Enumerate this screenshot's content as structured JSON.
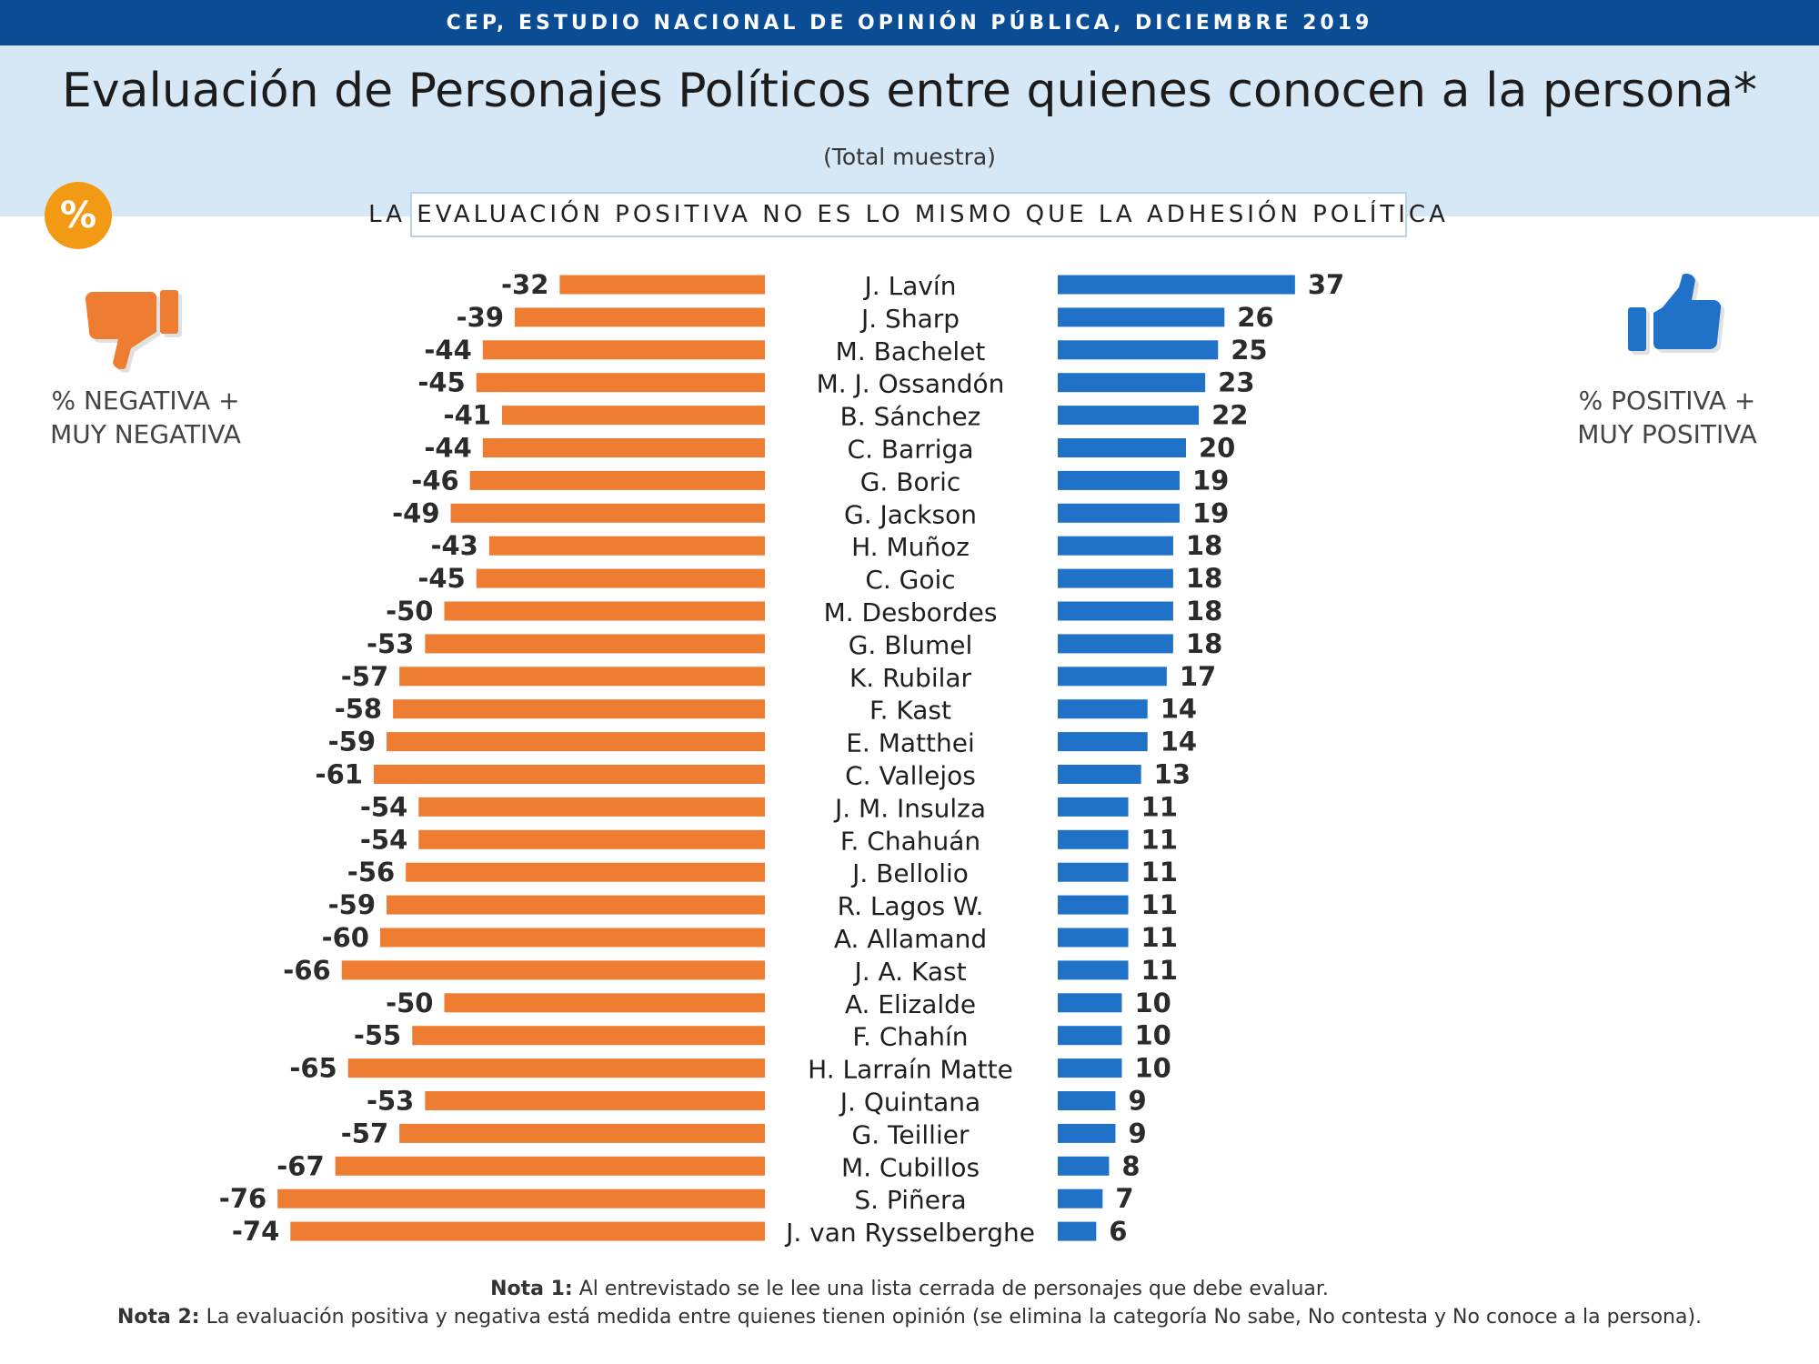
{
  "header": {
    "source": "CEP, ESTUDIO NACIONAL DE OPINIÓN PÚBLICA, DICIEMBRE 2019",
    "title": "Evaluación de Personajes Políticos entre quienes conocen a la persona*",
    "subtitle": "(Total muestra)",
    "callout": "LA EVALUACIÓN POSITIVA NO ES LO MISMO QUE LA ADHESIÓN POLÍTICA",
    "badge": "%"
  },
  "legend": {
    "negative_label": "% NEGATIVA +\nMUY NEGATIVA",
    "negative_icon": "thumbs-down-icon",
    "positive_label": "% POSITIVA +\nMUY POSITIVA",
    "positive_icon": "thumbs-up-icon"
  },
  "colors": {
    "negative": "#ee7d31",
    "positive": "#1f72c7",
    "header_bar": "#0b4d95",
    "header_band": "#d6e8f5",
    "badge": "#f39a14"
  },
  "chart_data": {
    "type": "bar",
    "orientation": "horizontal-diverging",
    "categories": [
      "J. Lavín",
      "J. Sharp",
      "M. Bachelet",
      "M. J. Ossandón",
      "B. Sánchez",
      "C. Barriga",
      "G. Boric",
      "G. Jackson",
      "H. Muñoz",
      "C. Goic",
      "M. Desbordes",
      "G. Blumel",
      "K. Rubilar",
      "F. Kast",
      "E. Matthei",
      "C. Vallejos",
      "J. M. Insulza",
      "F. Chahuán",
      "J. Bellolio",
      "R. Lagos W.",
      "A. Allamand",
      "J. A. Kast",
      "A. Elizalde",
      "F. Chahín",
      "H. Larraín Matte",
      "J. Quintana",
      "G. Teillier",
      "M. Cubillos",
      "S. Piñera",
      "J. van Rysselberghe"
    ],
    "series": [
      {
        "name": "% NEGATIVA + MUY NEGATIVA",
        "values": [
          -32,
          -39,
          -44,
          -45,
          -41,
          -44,
          -46,
          -49,
          -43,
          -45,
          -50,
          -53,
          -57,
          -58,
          -59,
          -61,
          -54,
          -54,
          -56,
          -59,
          -60,
          -66,
          -50,
          -55,
          -65,
          -53,
          -57,
          -67,
          -76,
          -74
        ]
      },
      {
        "name": "% POSITIVA + MUY POSITIVA",
        "values": [
          37,
          26,
          25,
          23,
          22,
          20,
          19,
          19,
          18,
          18,
          18,
          18,
          17,
          14,
          14,
          13,
          11,
          11,
          11,
          11,
          11,
          11,
          10,
          10,
          10,
          9,
          9,
          8,
          7,
          6
        ]
      }
    ]
  },
  "notes": [
    {
      "label": "Nota 1:",
      "text": " Al entrevistado se le lee una lista cerrada de personajes que debe evaluar."
    },
    {
      "label": "Nota 2:",
      "text": " La evaluación positiva y negativa está medida entre quienes tienen opinión (se elimina la categoría No sabe, No contesta y No conoce a la persona)."
    }
  ]
}
